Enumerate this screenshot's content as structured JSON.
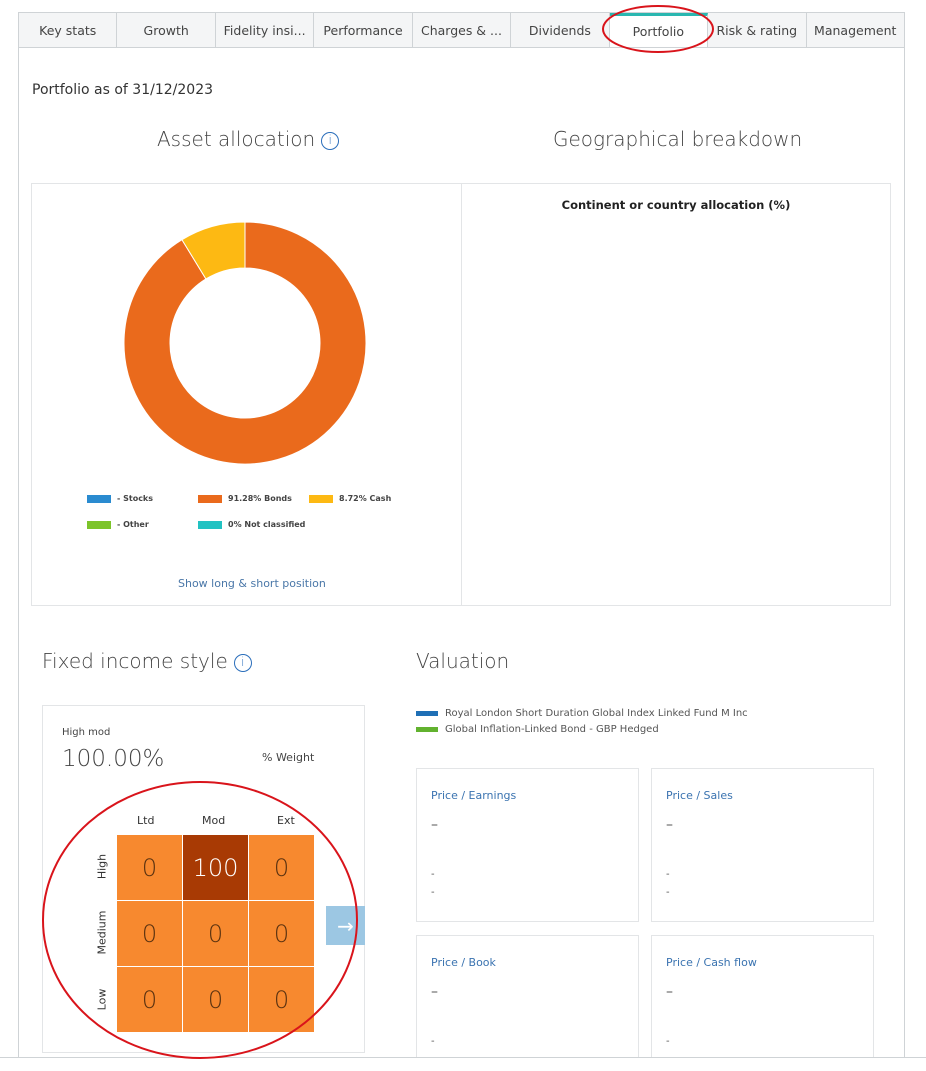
{
  "tabs": [
    "Key stats",
    "Growth",
    "Fidelity insi...",
    "Performance",
    "Charges & ...",
    "Dividends",
    "Portfolio",
    "Risk & rating",
    "Management"
  ],
  "active_tab": "Portfolio",
  "as_of": "Portfolio as of 31/12/2023",
  "asset_allocation": {
    "title": "Asset allocation",
    "info_icon": "i",
    "show_link": "Show long & short position",
    "legend": [
      {
        "label": "- Stocks",
        "color": "#2a8bd0"
      },
      {
        "label": "91.28% Bonds",
        "color": "#ea6a1c"
      },
      {
        "label": "8.72% Cash",
        "color": "#fdb913"
      },
      {
        "label": "- Other",
        "color": "#7cc42a"
      },
      {
        "label": "0% Not classified",
        "color": "#22c2c2"
      }
    ]
  },
  "chart_data": {
    "type": "pie",
    "donut": true,
    "categories": [
      "Stocks",
      "Bonds",
      "Cash",
      "Other",
      "Not classified"
    ],
    "values": [
      0,
      91.28,
      8.72,
      0,
      0
    ],
    "colors": [
      "#2a8bd0",
      "#ea6a1c",
      "#fdb913",
      "#7cc42a",
      "#22c2c2"
    ]
  },
  "geo": {
    "title": "Geographical breakdown",
    "subtitle": "Continent or country allocation (%)"
  },
  "fixed_income": {
    "title": "Fixed income style",
    "info_icon": "i",
    "style_label": "High mod",
    "weight_value": "100.00%",
    "weight_label": "% Weight",
    "cols": [
      "Ltd",
      "Mod",
      "Ext"
    ],
    "rows": [
      "High",
      "Medium",
      "Low"
    ],
    "grid": [
      [
        "0",
        "100",
        "0"
      ],
      [
        "0",
        "0",
        "0"
      ],
      [
        "0",
        "0",
        "0"
      ]
    ],
    "arrow": "→"
  },
  "valuation": {
    "title": "Valuation",
    "legend": [
      {
        "label": "Royal London Short Duration Global Index Linked Fund M Inc",
        "color": "#1f6fb5"
      },
      {
        "label": "Global Inflation-Linked Bond - GBP Hedged",
        "color": "#62b22f"
      }
    ],
    "cards": [
      {
        "title": "Price / Earnings",
        "value": "–",
        "a": "-",
        "b": "-"
      },
      {
        "title": "Price / Sales",
        "value": "–",
        "a": "-",
        "b": "-"
      },
      {
        "title": "Price / Book",
        "value": "–",
        "a": "-"
      },
      {
        "title": "Price / Cash flow",
        "value": "–",
        "a": "-"
      }
    ]
  }
}
